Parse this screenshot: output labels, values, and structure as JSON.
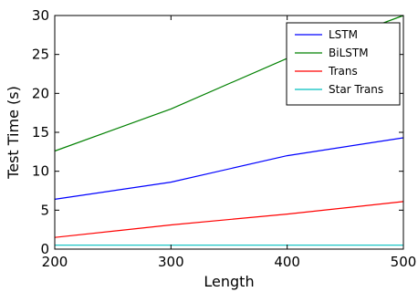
{
  "chart_data": {
    "type": "line",
    "title": "",
    "xlabel": "Length",
    "ylabel": "Test Time (s)",
    "x": [
      200,
      300,
      400,
      500
    ],
    "xlim": [
      200,
      500
    ],
    "ylim": [
      0,
      30
    ],
    "xticks": [
      200,
      300,
      400,
      500
    ],
    "yticks": [
      0,
      5,
      10,
      15,
      20,
      25,
      30
    ],
    "grid": false,
    "legend": "top-right",
    "series": [
      {
        "name": "LSTM",
        "color": "#0000ff",
        "values": [
          6.4,
          8.6,
          12.0,
          14.3
        ]
      },
      {
        "name": "BiLSTM",
        "color": "#008000",
        "values": [
          12.6,
          18.0,
          24.5,
          30.0
        ]
      },
      {
        "name": "Trans",
        "color": "#ff0000",
        "values": [
          1.5,
          3.1,
          4.5,
          6.1
        ]
      },
      {
        "name": "Star Trans",
        "color": "#00bfbf",
        "values": [
          0.5,
          0.5,
          0.5,
          0.5
        ]
      }
    ]
  }
}
